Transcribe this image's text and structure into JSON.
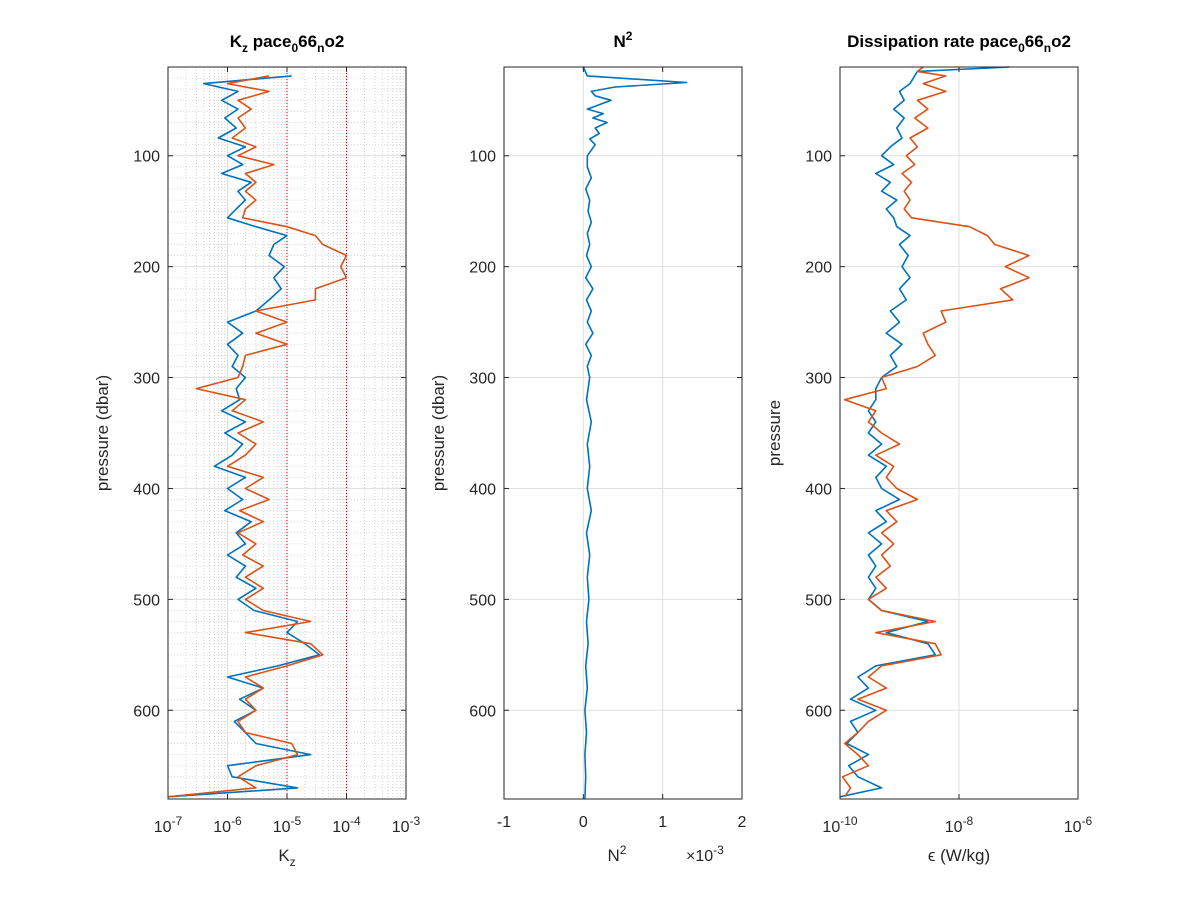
{
  "colors": {
    "blue": "#0072BD",
    "orange": "#D95319",
    "ref_line": "#C00000",
    "grid": "#DFDFDF"
  },
  "chart_data": [
    {
      "type": "line",
      "title": "K",
      "title_sub_1": "z",
      "title_mid": " pace",
      "title_sub_2": "0",
      "title_mid_2": "66",
      "title_sub_3": "n",
      "title_end": "o2",
      "xlabel": "K",
      "xlabel_sub": "z",
      "ylabel": "pressure (dbar)",
      "xscale": "log",
      "xlim": [
        1e-07,
        0.001
      ],
      "ylim": [
        20,
        680
      ],
      "y_reversed": true,
      "x_ticks": [
        1e-07,
        1e-06,
        1e-05,
        0.0001,
        0.001
      ],
      "x_tick_bases": [
        "10",
        "10",
        "10",
        "10",
        "10"
      ],
      "x_tick_exps": [
        "-7",
        "-6",
        "-5",
        "-4",
        "-3"
      ],
      "y_ticks": [
        100,
        200,
        300,
        400,
        500,
        600
      ],
      "y_tick_labels": [
        "100",
        "200",
        "300",
        "400",
        "500",
        "600"
      ],
      "minor_grid": true,
      "reference_lines_x": [
        1e-05,
        0.0001
      ],
      "series": [
        {
          "color": "blue",
          "y": [
            28,
            35,
            42,
            50,
            58,
            66,
            75,
            84,
            92,
            100,
            108,
            116,
            124,
            132,
            140,
            148,
            156,
            164,
            172,
            180,
            190,
            200,
            210,
            220,
            230,
            240,
            250,
            260,
            270,
            280,
            290,
            300,
            310,
            320,
            330,
            340,
            350,
            360,
            370,
            380,
            390,
            400,
            410,
            420,
            430,
            440,
            450,
            460,
            470,
            480,
            490,
            500,
            510,
            520,
            530,
            540,
            550,
            560,
            570,
            580,
            590,
            600,
            610,
            620,
            630,
            640,
            650,
            660,
            670,
            678
          ],
          "x": [
            1.2e-05,
            4e-07,
            1.5e-06,
            8e-07,
            1.5e-06,
            9e-07,
            1.4e-06,
            7e-07,
            2e-06,
            1e-06,
            1.8e-06,
            8e-07,
            2.5e-06,
            1.5e-06,
            2e-06,
            1.4e-06,
            1e-06,
            3e-06,
            1e-05,
            6e-06,
            5e-06,
            9e-06,
            6e-06,
            8e-06,
            5e-06,
            3e-06,
            1e-06,
            1.8e-06,
            1e-06,
            1.5e-06,
            1.2e-06,
            2e-06,
            1.4e-06,
            1.6e-06,
            8e-07,
            2e-06,
            9e-07,
            1.8e-06,
            1.2e-06,
            6e-07,
            2e-06,
            1e-06,
            1.8e-06,
            9e-07,
            2.5e-06,
            1.4e-06,
            2e-06,
            1e-06,
            2e-06,
            1.4e-06,
            3e-06,
            1.5e-06,
            2.8e-06,
            1.5e-05,
            1e-05,
            2e-05,
            3.5e-05,
            7e-06,
            1e-06,
            4e-06,
            1.6e-06,
            3e-06,
            1.3e-06,
            2e-06,
            3e-06,
            2.5e-05,
            1e-06,
            1.2e-06,
            1.5e-05,
            1e-07
          ]
        },
        {
          "color": "orange",
          "y": [
            28,
            35,
            42,
            50,
            58,
            66,
            75,
            84,
            92,
            100,
            108,
            116,
            124,
            132,
            140,
            148,
            156,
            164,
            172,
            180,
            190,
            200,
            210,
            220,
            230,
            240,
            250,
            260,
            270,
            280,
            290,
            300,
            310,
            320,
            330,
            340,
            350,
            360,
            370,
            380,
            390,
            400,
            410,
            420,
            430,
            440,
            450,
            460,
            470,
            480,
            490,
            500,
            510,
            520,
            530,
            540,
            550,
            560,
            570,
            580,
            590,
            600,
            610,
            620,
            630,
            640,
            650,
            660,
            670,
            678
          ],
          "x": [
            5e-06,
            1e-06,
            5e-06,
            1.5e-06,
            2.5e-06,
            1.5e-06,
            2e-06,
            1.2e-06,
            3e-06,
            1.5e-06,
            6e-06,
            2e-06,
            3e-06,
            2e-06,
            3e-06,
            2e-06,
            1.8e-06,
            1e-05,
            3e-05,
            4e-05,
            0.0001,
            8e-05,
            0.0001,
            3e-05,
            3e-05,
            3e-06,
            1e-05,
            3e-06,
            1e-05,
            2e-06,
            1.8e-06,
            1.5e-06,
            3e-07,
            2e-06,
            1.2e-06,
            4e-06,
            1.5e-06,
            3e-06,
            2e-06,
            1e-06,
            4e-06,
            2e-06,
            5e-06,
            1.6e-06,
            4e-06,
            1.5e-06,
            3e-06,
            1.8e-06,
            4e-06,
            2e-06,
            4e-06,
            2e-06,
            4e-06,
            2.5e-05,
            2e-06,
            2.5e-05,
            4e-05,
            1e-05,
            2e-06,
            4e-06,
            2e-06,
            3e-06,
            1.5e-06,
            2e-06,
            1.2e-05,
            1.5e-05,
            3e-06,
            1.5e-06,
            3e-06,
            1e-07
          ]
        }
      ]
    },
    {
      "type": "line",
      "title": "N",
      "title_sup": "2",
      "xlabel": "N",
      "xlabel_sup": "2",
      "x_multiplier_base": "×10",
      "x_multiplier_exp": "-3",
      "ylabel": "pressure (dbar)",
      "xscale": "linear",
      "xlim": [
        -1,
        2
      ],
      "ylim": [
        20,
        680
      ],
      "y_reversed": true,
      "x_ticks": [
        -1,
        0,
        1,
        2
      ],
      "x_tick_labels": [
        "-1",
        "0",
        "1",
        "2"
      ],
      "y_ticks": [
        100,
        200,
        300,
        400,
        500,
        600
      ],
      "y_tick_labels": [
        "100",
        "200",
        "300",
        "400",
        "500",
        "600"
      ],
      "grid": true,
      "series": [
        {
          "color": "blue",
          "y": [
            20,
            28,
            34,
            38,
            42,
            46,
            50,
            54,
            58,
            62,
            66,
            70,
            75,
            80,
            85,
            90,
            95,
            100,
            110,
            120,
            130,
            140,
            150,
            160,
            170,
            180,
            190,
            200,
            210,
            220,
            230,
            240,
            250,
            260,
            270,
            280,
            290,
            300,
            320,
            340,
            360,
            380,
            400,
            420,
            440,
            460,
            480,
            500,
            520,
            540,
            560,
            580,
            600,
            620,
            640,
            660,
            680
          ],
          "x": [
            0,
            0.05,
            1.3,
            0.4,
            0.1,
            0.15,
            0.35,
            0.2,
            0.05,
            0.25,
            0.12,
            0.3,
            0.15,
            0.2,
            0.08,
            0.15,
            0.1,
            0.05,
            0.05,
            0.1,
            0.03,
            0.08,
            0.06,
            0.1,
            0.05,
            0.08,
            0.04,
            0.1,
            0.03,
            0.12,
            0.04,
            0.1,
            0.05,
            0.12,
            0.03,
            0.1,
            0.05,
            0.08,
            0.04,
            0.1,
            0.05,
            0.08,
            0.05,
            0.1,
            0.04,
            0.08,
            0.05,
            0.07,
            0.04,
            0.06,
            0.03,
            0.05,
            0.02,
            0.04,
            0.02,
            0.03,
            0.02
          ]
        }
      ]
    },
    {
      "type": "line",
      "title": "Dissipation rate pace",
      "title_sub_1": "0",
      "title_mid": "66",
      "title_sub_2": "n",
      "title_end": "o2",
      "xlabel": "ϵ (W/kg)",
      "ylabel": "pressure",
      "xscale": "log",
      "xlim": [
        1e-10,
        1e-06
      ],
      "ylim": [
        20,
        680
      ],
      "y_reversed": true,
      "x_ticks": [
        1e-10,
        1e-08,
        1e-06
      ],
      "x_tick_bases": [
        "10",
        "10",
        "10"
      ],
      "x_tick_exps": [
        "-10",
        "-8",
        "-6"
      ],
      "y_ticks": [
        100,
        200,
        300,
        400,
        500,
        600
      ],
      "y_tick_labels": [
        "100",
        "200",
        "300",
        "400",
        "500",
        "600"
      ],
      "grid": true,
      "series": [
        {
          "color": "blue",
          "y": [
            20,
            24,
            28,
            35,
            42,
            50,
            58,
            66,
            75,
            84,
            92,
            100,
            108,
            116,
            124,
            132,
            140,
            148,
            156,
            164,
            172,
            180,
            190,
            200,
            210,
            220,
            230,
            240,
            250,
            260,
            270,
            280,
            290,
            300,
            310,
            320,
            330,
            340,
            350,
            360,
            370,
            380,
            390,
            400,
            410,
            420,
            430,
            440,
            450,
            460,
            470,
            480,
            490,
            500,
            510,
            520,
            530,
            540,
            550,
            560,
            570,
            580,
            590,
            600,
            610,
            620,
            630,
            640,
            650,
            660,
            670,
            678
          ],
          "x": [
            7e-08,
            2e-09,
            1.8e-09,
            1.5e-09,
            1e-09,
            1.2e-09,
            8e-10,
            1.2e-09,
            9e-10,
            1.1e-09,
            7e-10,
            5e-10,
            8e-10,
            4e-10,
            7e-10,
            5e-10,
            9e-10,
            6e-10,
            8e-10,
            9e-10,
            1.5e-09,
            1e-09,
            1.4e-09,
            1.1e-09,
            1.5e-09,
            1e-09,
            1.3e-09,
            7e-10,
            1e-09,
            6e-10,
            1.1e-09,
            7e-10,
            9e-10,
            5e-10,
            4e-10,
            4e-10,
            3e-10,
            4e-10,
            3e-10,
            5e-10,
            3e-10,
            6e-10,
            4e-10,
            5e-10,
            1e-09,
            4e-10,
            6e-10,
            3e-10,
            5e-10,
            3e-10,
            4e-10,
            3e-10,
            4e-10,
            3e-10,
            5e-10,
            3e-09,
            6e-10,
            3e-09,
            4e-09,
            4e-10,
            2e-10,
            3e-10,
            1.5e-10,
            4e-10,
            1.5e-10,
            2e-10,
            1.3e-10,
            3e-10,
            1.4e-10,
            2e-10,
            5e-10,
            1e-10
          ]
        },
        {
          "color": "orange",
          "y": [
            20,
            24,
            28,
            35,
            42,
            50,
            58,
            66,
            75,
            84,
            92,
            100,
            108,
            116,
            124,
            132,
            140,
            148,
            156,
            164,
            172,
            180,
            190,
            200,
            210,
            220,
            230,
            240,
            250,
            260,
            270,
            280,
            290,
            300,
            310,
            320,
            330,
            340,
            350,
            360,
            370,
            380,
            390,
            400,
            410,
            420,
            430,
            440,
            450,
            460,
            470,
            480,
            490,
            500,
            510,
            520,
            530,
            540,
            550,
            560,
            570,
            580,
            590,
            600,
            610,
            620,
            630,
            640,
            650,
            660,
            670,
            678
          ],
          "x": [
            2.5e-09,
            2e-09,
            6e-09,
            2.5e-09,
            6e-09,
            2e-09,
            3e-09,
            1.8e-09,
            3e-09,
            1.5e-09,
            2e-09,
            1.3e-09,
            1.8e-09,
            1.1e-09,
            1.6e-09,
            1.2e-09,
            1.5e-09,
            1.2e-09,
            1.6e-09,
            1.5e-08,
            3e-08,
            4e-08,
            1.5e-07,
            6e-08,
            1.5e-07,
            5e-08,
            8e-08,
            5e-09,
            6e-09,
            2.5e-09,
            3e-09,
            4e-09,
            2e-09,
            5e-10,
            6e-10,
            1.2e-10,
            4e-10,
            3e-10,
            5e-10,
            1e-09,
            4e-10,
            8e-10,
            6e-10,
            9e-10,
            2e-09,
            6e-10,
            9e-10,
            5e-10,
            8e-10,
            5e-10,
            7e-10,
            4e-10,
            6e-10,
            3e-10,
            5e-10,
            4e-09,
            4e-10,
            4e-09,
            5e-09,
            5e-10,
            3e-10,
            6e-10,
            2e-10,
            6e-10,
            3e-10,
            2e-10,
            1.2e-10,
            2e-10,
            3e-10,
            1.1e-10,
            1.5e-10,
            1.2e-10
          ]
        }
      ]
    }
  ]
}
